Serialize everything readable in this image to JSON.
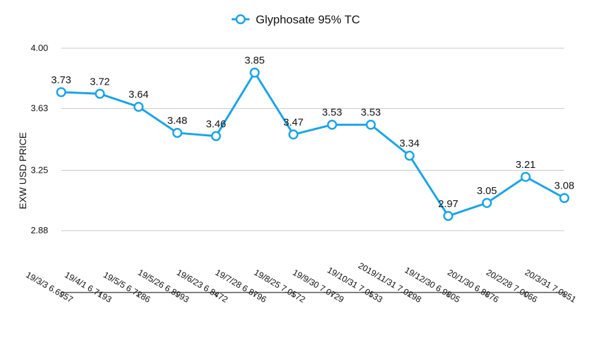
{
  "chart_data": {
    "type": "line",
    "title": "",
    "ylabel": "EXW USD PRICE",
    "xlabel": "",
    "ylim": [
      2.5,
      4.0
    ],
    "yticks": [
      2.88,
      3.25,
      3.63,
      4.0
    ],
    "ytick_labels": [
      "2.88",
      "3.25",
      "3.63",
      "4.00"
    ],
    "grid": true,
    "legend_position": "top-center",
    "categories": [
      "19/3/3 6.6957",
      "19/4/1 6.7193",
      "19/5/5 6.7286",
      "19/5/26 6.8993",
      "19/6/23 6.8472",
      "19/7/28 6.8796",
      "19/8/25 7.0572",
      "19/9/30 7.0729",
      "19/10/31 7.0533",
      "2019/11/31 7.0298",
      "19/12/30 6.9805",
      "20/1/30 6.8876",
      "20/2/28 7.0066",
      "20/3/31 7.0851"
    ],
    "series": [
      {
        "name": "Glyphosate 95% TC",
        "color": "#1aa3e8",
        "values": [
          3.73,
          3.72,
          3.64,
          3.48,
          3.46,
          3.85,
          3.47,
          3.53,
          3.53,
          3.34,
          2.97,
          3.05,
          3.21,
          3.08
        ],
        "labels": [
          "3.73",
          "3.72",
          "3.64",
          "3.48",
          "3.46",
          "3.85",
          "3.47",
          "3.53",
          "3.53",
          "3.34",
          "2.97",
          "3.05",
          "3.21",
          "3.08"
        ]
      }
    ]
  }
}
